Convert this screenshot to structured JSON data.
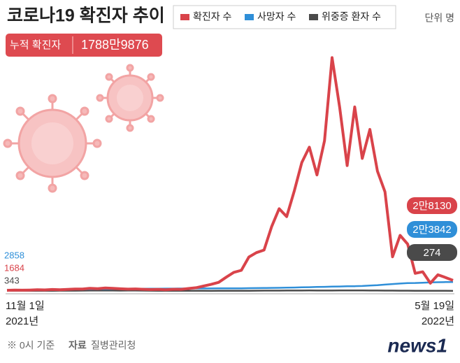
{
  "chart_data": {
    "type": "line",
    "title": "코로나19 확진자 추이",
    "unit": "단위 명",
    "total_label": "누적 확진자",
    "total_value": "1788만9876",
    "categories": [
      "11월 1일",
      null,
      null,
      null,
      null,
      null,
      null,
      null,
      null,
      null,
      null,
      null,
      null,
      null,
      null,
      null,
      null,
      null,
      null,
      null,
      null,
      null,
      null,
      null,
      null,
      null,
      null,
      null,
      null,
      null,
      null,
      null,
      null,
      null,
      null,
      null,
      null,
      null,
      null,
      null,
      null,
      null,
      null,
      null,
      null,
      null,
      null,
      null,
      null,
      null,
      null,
      null,
      null,
      null,
      null,
      null,
      null,
      null,
      null,
      "5월 19일"
    ],
    "x_years": [
      "2021년",
      "2022년"
    ],
    "ylim": [
      0,
      650000
    ],
    "grid": false,
    "series": [
      {
        "name": "확진자 수",
        "color": "#d9434a",
        "values": [
          1684,
          2400,
          2100,
          2500,
          3200,
          2800,
          3900,
          3300,
          4100,
          5100,
          5300,
          7100,
          6200,
          7800,
          6900,
          5800,
          4800,
          5400,
          4400,
          3800,
          4100,
          3100,
          4500,
          4200,
          6600,
          8500,
          13000,
          17500,
          22900,
          36700,
          49500,
          54900,
          90400,
          102000,
          109000,
          171000,
          219000,
          198000,
          266000,
          342000,
          383000,
          309000,
          400000,
          621328,
          490000,
          334000,
          490000,
          353000,
          430000,
          319000,
          264000,
          90900,
          148000,
          125000,
          47000,
          51000,
          20600,
          43000,
          35900,
          28130
        ],
        "value_labels": [
          "1684",
          null,
          null,
          null,
          null,
          null,
          null,
          null,
          null,
          null,
          null,
          null,
          null,
          null,
          null,
          null,
          null,
          null,
          null,
          null,
          null,
          null,
          null,
          null,
          null,
          null,
          null,
          null,
          null,
          null,
          null,
          null,
          null,
          null,
          null,
          null,
          null,
          null,
          null,
          null,
          null,
          null,
          null,
          null,
          null,
          null,
          null,
          null,
          null,
          null,
          null,
          null,
          null,
          null,
          null,
          null,
          null,
          null,
          null,
          "2만8130"
        ]
      },
      {
        "name": "사망자 수",
        "color": "#2f8fd8",
        "values": [
          2858,
          2968,
          3098,
          3187,
          3298,
          3429,
          3580,
          3705,
          3893,
          4130,
          4387,
          4591,
          4906,
          5015,
          5187,
          5382,
          5563,
          5625,
          5838,
          5967,
          6113,
          6259,
          6333,
          6452,
          6540,
          6620,
          6704,
          6772,
          6873,
          6963,
          7045,
          7162,
          7405,
          7607,
          7865,
          8266,
          8394,
          8796,
          9096,
          9646,
          10080,
          10595,
          11052,
          11481,
          11955,
          12428,
          12757,
          13141,
          14294,
          15186,
          16929,
          18384,
          19650,
          20980,
          21224,
          22000,
          22891,
          23320,
          23600,
          23842
        ],
        "value_labels": [
          "2858",
          null,
          null,
          null,
          null,
          null,
          null,
          null,
          null,
          null,
          null,
          null,
          null,
          null,
          null,
          null,
          null,
          null,
          null,
          null,
          null,
          null,
          null,
          null,
          null,
          null,
          null,
          null,
          null,
          null,
          null,
          null,
          null,
          null,
          null,
          null,
          null,
          null,
          null,
          null,
          null,
          null,
          null,
          null,
          null,
          null,
          null,
          null,
          null,
          null,
          null,
          null,
          null,
          null,
          null,
          null,
          null,
          null,
          null,
          "2만3842"
        ]
      },
      {
        "name": "위중증 환자 수",
        "color": "#4a4a4a",
        "values": [
          343,
          378,
          412,
          485,
          522,
          586,
          629,
          661,
          733,
          764,
          857,
          1025,
          1078,
          1059,
          1083,
          1016,
          1063,
          1050,
          882,
          727,
          626,
          532,
          433,
          401,
          392,
          350,
          288,
          272,
          285,
          306,
          408,
          480,
          588,
          727,
          885,
          955,
          1008,
          1080,
          1158,
          1116,
          1244,
          1104,
          1196,
          1159,
          1273,
          1301,
          1315,
          1215,
          1081,
          1099,
          1014,
          869,
          740,
          668,
          613,
          520,
          433,
          398,
          336,
          274
        ],
        "value_labels": [
          "343",
          null,
          null,
          null,
          null,
          null,
          null,
          null,
          null,
          null,
          null,
          null,
          null,
          null,
          null,
          null,
          null,
          null,
          null,
          null,
          null,
          null,
          null,
          null,
          null,
          null,
          null,
          null,
          null,
          null,
          null,
          null,
          null,
          null,
          null,
          null,
          null,
          null,
          null,
          null,
          null,
          null,
          null,
          null,
          null,
          null,
          null,
          null,
          null,
          null,
          null,
          null,
          null,
          null,
          null,
          null,
          null,
          null,
          null,
          "274"
        ]
      }
    ],
    "note": "※ 0시 기준",
    "source_label": "자료",
    "source": "질병관리청",
    "logo": "news1"
  }
}
